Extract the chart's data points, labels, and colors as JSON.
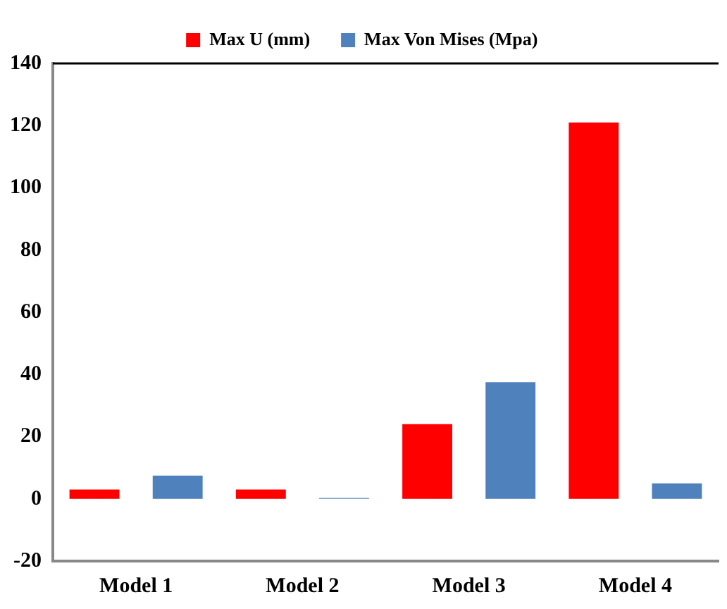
{
  "chart_data": {
    "type": "bar",
    "categories": [
      "Model 1",
      "Model 2",
      "Model 3",
      "Model 4"
    ],
    "series": [
      {
        "name": "Max U (mm)",
        "color": "#ff0000",
        "values": [
          3,
          3,
          24,
          121
        ]
      },
      {
        "name": "Max Von Mises (Mpa)",
        "color": "#4f81bd",
        "values": [
          7.5,
          0.3,
          37.5,
          5
        ]
      }
    ],
    "ylim": [
      -20,
      140
    ],
    "yticks": [
      -20,
      0,
      20,
      40,
      60,
      80,
      100,
      120,
      140
    ],
    "grid": false,
    "legend": "top"
  }
}
